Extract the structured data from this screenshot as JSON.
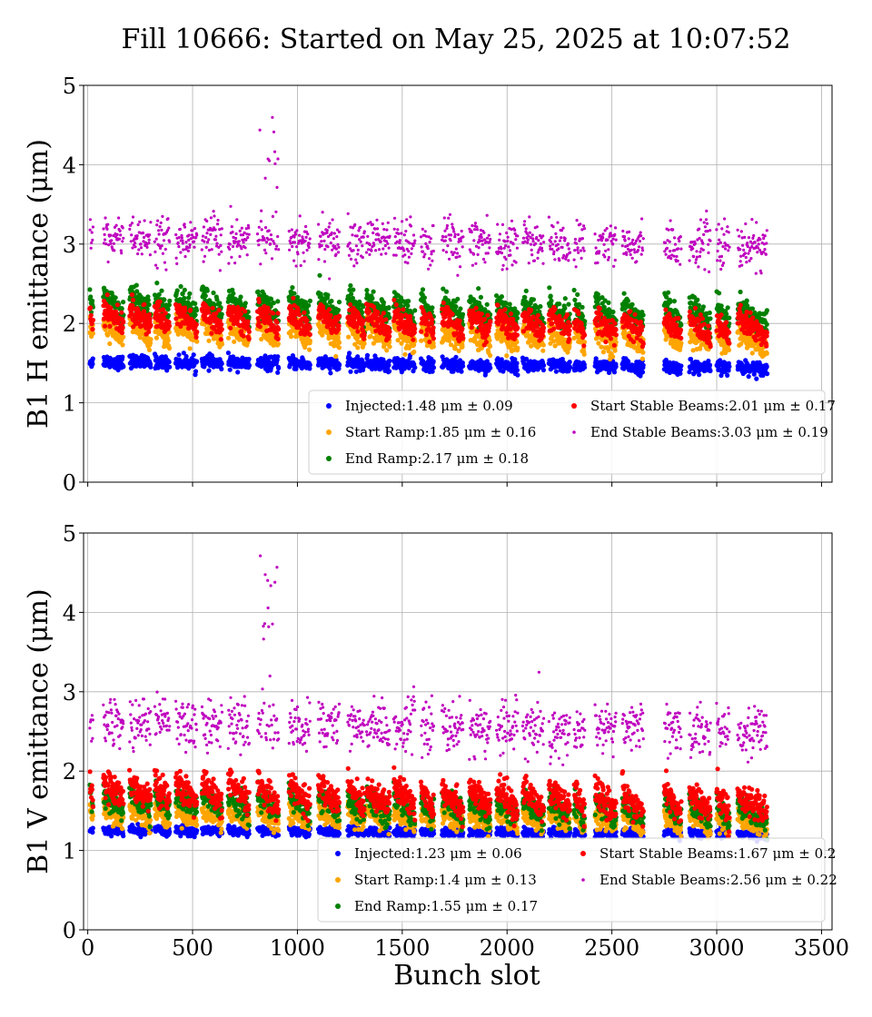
{
  "suptitle": "Fill 10666: Started on May 25, 2025 at 10:07:52",
  "colors": {
    "injected": "#0000ff",
    "start_ramp": "#ffa500",
    "end_ramp": "#008000",
    "start_stable": "#ff0000",
    "end_stable": "#bf00bf"
  },
  "chart_data": [
    {
      "type": "scatter",
      "panel": "top",
      "ylabel": "B1 H emittance (μm)",
      "xlabel": "",
      "xlim": [
        -20,
        3550
      ],
      "ylim": [
        0,
        5
      ],
      "xticks": [
        0,
        500,
        1000,
        1500,
        2000,
        2500,
        3000,
        3500
      ],
      "xtick_labels_visible": false,
      "yticks": [
        0,
        1,
        2,
        3,
        4,
        5
      ],
      "grid": true,
      "legend_placement": "lower-right",
      "series": [
        {
          "key": "injected",
          "name": "Injected:1.48 μm ± 0.09",
          "mean": 1.48,
          "std": 0.09
        },
        {
          "key": "start_ramp",
          "name": "Start Ramp:1.85 μm ± 0.16",
          "mean": 1.85,
          "std": 0.16
        },
        {
          "key": "end_ramp",
          "name": "End Ramp:2.17 μm ± 0.18",
          "mean": 2.17,
          "std": 0.18
        },
        {
          "key": "start_stable",
          "name": "Start Stable Beams:2.01 μm ± 0.17",
          "mean": 2.01,
          "std": 0.17
        },
        {
          "key": "end_stable",
          "name": "End Stable Beams:3.03 μm ± 0.19",
          "mean": 3.03,
          "std": 0.19
        }
      ],
      "spike": {
        "x_range": [
          820,
          920
        ],
        "peak": 4.86
      }
    },
    {
      "type": "scatter",
      "panel": "bottom",
      "ylabel": "B1 V emittance (μm)",
      "xlabel": "Bunch slot",
      "xlim": [
        -20,
        3550
      ],
      "ylim": [
        0,
        5
      ],
      "xticks": [
        0,
        500,
        1000,
        1500,
        2000,
        2500,
        3000,
        3500
      ],
      "xtick_labels_visible": true,
      "yticks": [
        0,
        1,
        2,
        3,
        4,
        5
      ],
      "grid": true,
      "legend_placement": "lower-right",
      "series": [
        {
          "key": "injected",
          "name": "Injected:1.23 μm ± 0.06",
          "mean": 1.23,
          "std": 0.06
        },
        {
          "key": "start_ramp",
          "name": "Start Ramp:1.4 μm ± 0.13",
          "mean": 1.4,
          "std": 0.13
        },
        {
          "key": "end_ramp",
          "name": "End Ramp:1.55 μm ± 0.17",
          "mean": 1.55,
          "std": 0.17
        },
        {
          "key": "start_stable",
          "name": "Start Stable Beams:1.67 μm ± 0.2",
          "mean": 1.67,
          "std": 0.2
        },
        {
          "key": "end_stable",
          "name": "End Stable Beams:2.56 μm ± 0.22",
          "mean": 2.56,
          "std": 0.22
        }
      ],
      "spike": {
        "x_range": [
          820,
          920
        ],
        "peak": 4.77
      }
    }
  ],
  "trains": [
    [
      10,
      25
    ],
    [
      75,
      170
    ],
    [
      200,
      300
    ],
    [
      320,
      390
    ],
    [
      420,
      520
    ],
    [
      545,
      640
    ],
    [
      670,
      770
    ],
    [
      810,
      910
    ],
    [
      960,
      1060
    ],
    [
      1100,
      1200
    ],
    [
      1240,
      1320
    ],
    [
      1330,
      1440
    ],
    [
      1460,
      1560
    ],
    [
      1590,
      1650
    ],
    [
      1690,
      1790
    ],
    [
      1820,
      1920
    ],
    [
      1950,
      2050
    ],
    [
      2075,
      2175
    ],
    [
      2200,
      2300
    ],
    [
      2320,
      2370
    ],
    [
      2420,
      2520
    ],
    [
      2550,
      2650
    ],
    [
      2750,
      2830
    ],
    [
      2870,
      2970
    ],
    [
      3000,
      3060
    ],
    [
      3100,
      3240
    ]
  ]
}
